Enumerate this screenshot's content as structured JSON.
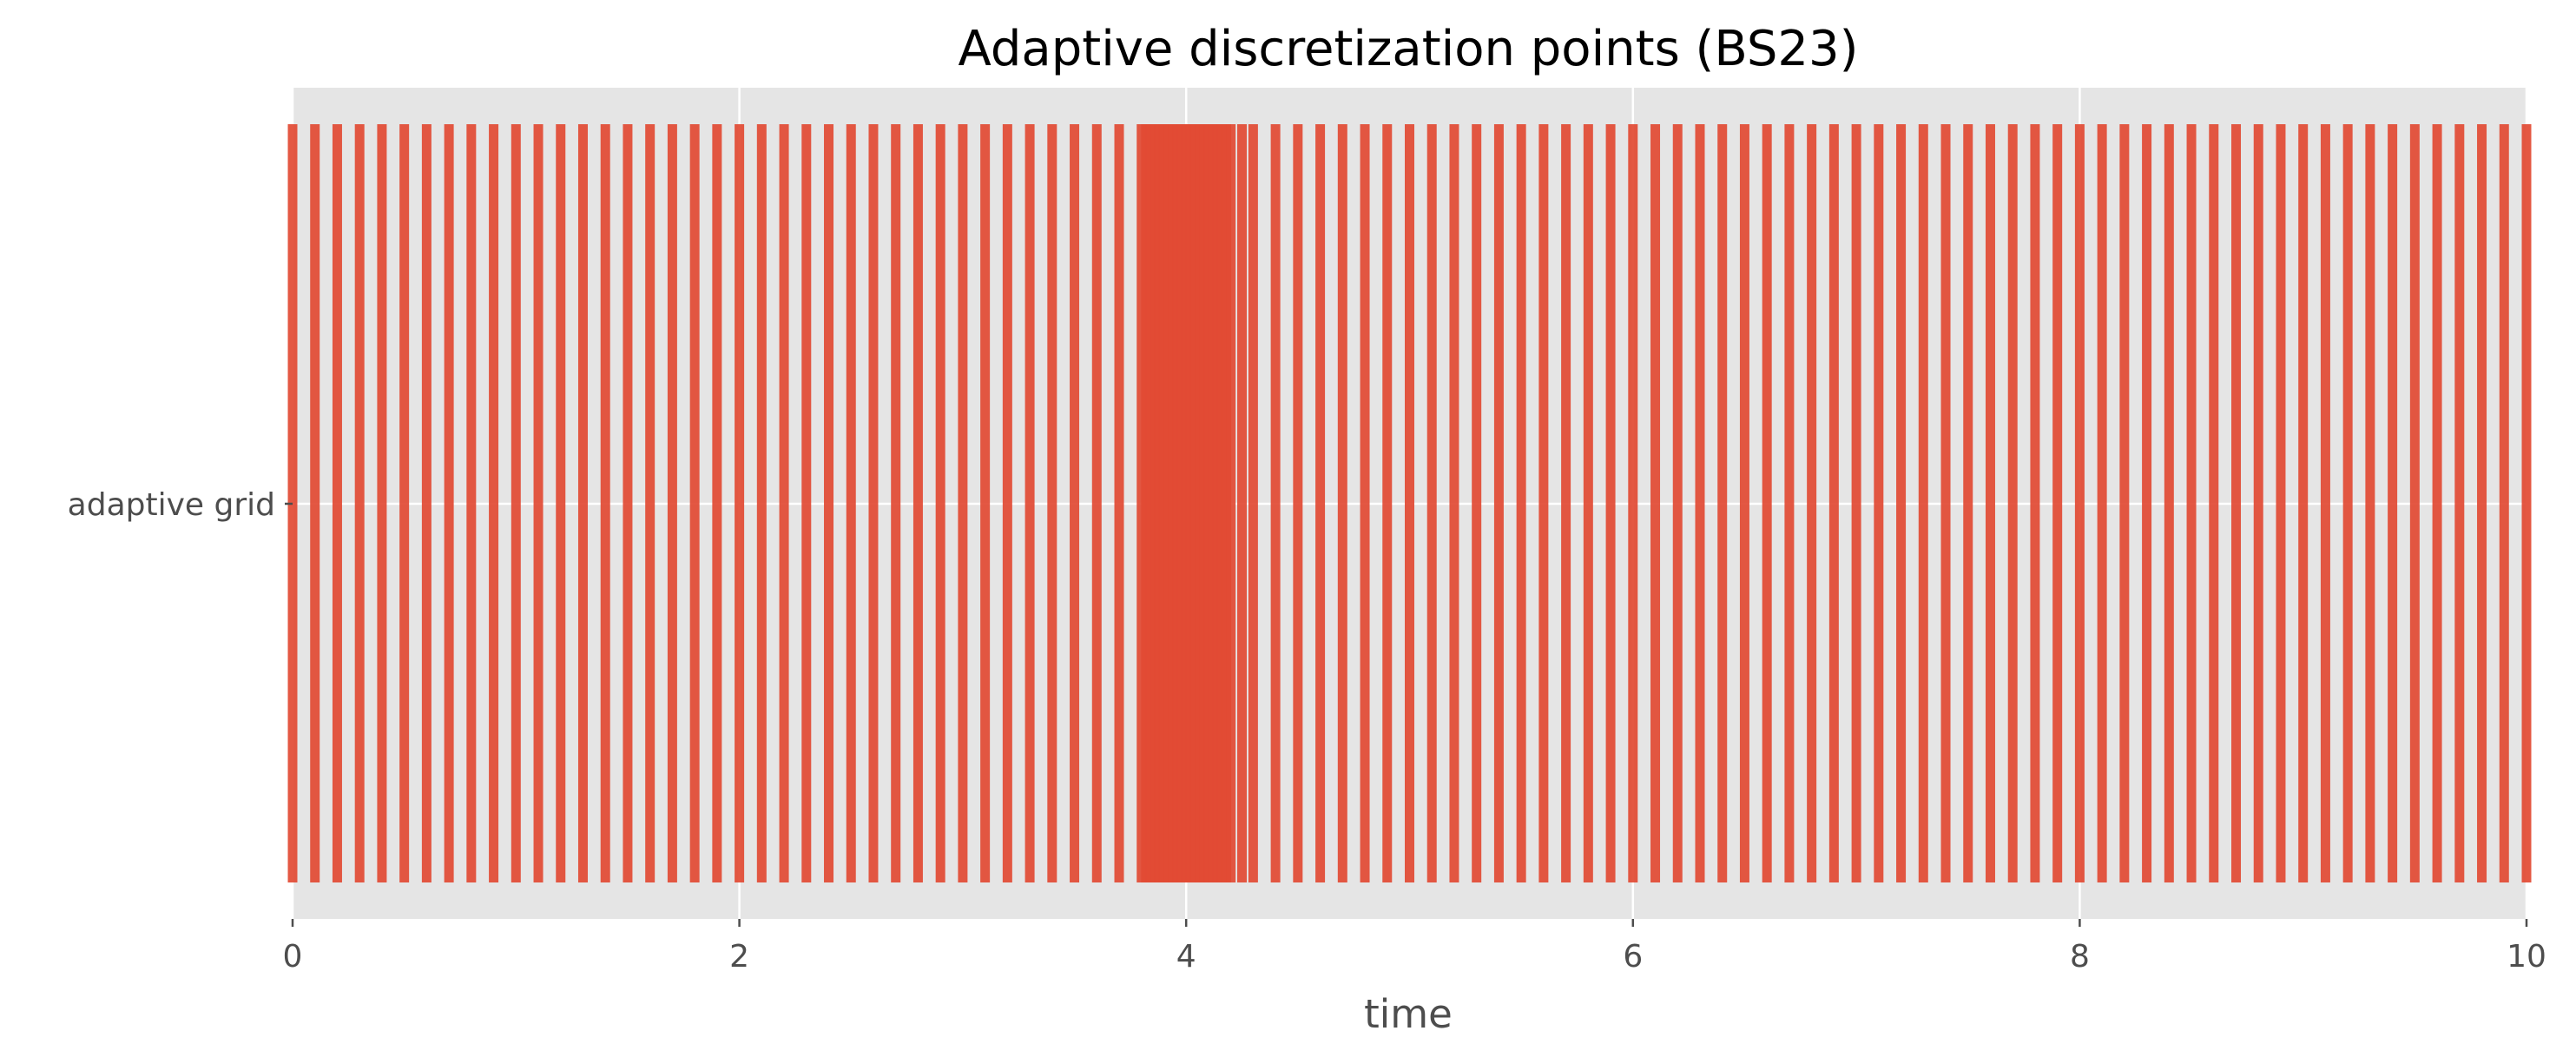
{
  "chart_data": {
    "type": "event",
    "title": "Adaptive discretization points (BS23)",
    "xlabel": "time",
    "ylabel": "",
    "xlim": [
      0,
      10
    ],
    "x_ticks": [
      0,
      2,
      4,
      6,
      8,
      10
    ],
    "y_categories": [
      "adaptive grid"
    ],
    "grid": true,
    "colors": {
      "panel_background": "#e5e5e5",
      "grid": "#ffffff",
      "event_line": "#e24a33"
    },
    "series": [
      {
        "category": "adaptive grid",
        "x": [
          0.0,
          0.1,
          0.2,
          0.3,
          0.4,
          0.5,
          0.6,
          0.7,
          0.8,
          0.9,
          1.0,
          1.1,
          1.2,
          1.3,
          1.4,
          1.5,
          1.6,
          1.7,
          1.8,
          1.9,
          2.0,
          2.1,
          2.2,
          2.3,
          2.4,
          2.5,
          2.6,
          2.7,
          2.8,
          2.9,
          3.0,
          3.1,
          3.2,
          3.3,
          3.4,
          3.5,
          3.6,
          3.7,
          3.8,
          3.82,
          3.84,
          3.86,
          3.88,
          3.9,
          3.92,
          3.94,
          3.96,
          3.98,
          4.0,
          4.02,
          4.04,
          4.06,
          4.08,
          4.1,
          4.12,
          4.14,
          4.16,
          4.18,
          4.2,
          4.25,
          4.3,
          4.4,
          4.5,
          4.6,
          4.7,
          4.8,
          4.9,
          5.0,
          5.1,
          5.2,
          5.3,
          5.4,
          5.5,
          5.6,
          5.7,
          5.8,
          5.9,
          6.0,
          6.1,
          6.2,
          6.3,
          6.4,
          6.5,
          6.6,
          6.7,
          6.8,
          6.9,
          7.0,
          7.1,
          7.2,
          7.3,
          7.4,
          7.5,
          7.6,
          7.7,
          7.8,
          7.9,
          8.0,
          8.1,
          8.2,
          8.3,
          8.4,
          8.5,
          8.6,
          8.7,
          8.8,
          8.9,
          9.0,
          9.1,
          9.2,
          9.3,
          9.4,
          9.5,
          9.6,
          9.7,
          9.8,
          9.9,
          10.0
        ]
      }
    ]
  }
}
